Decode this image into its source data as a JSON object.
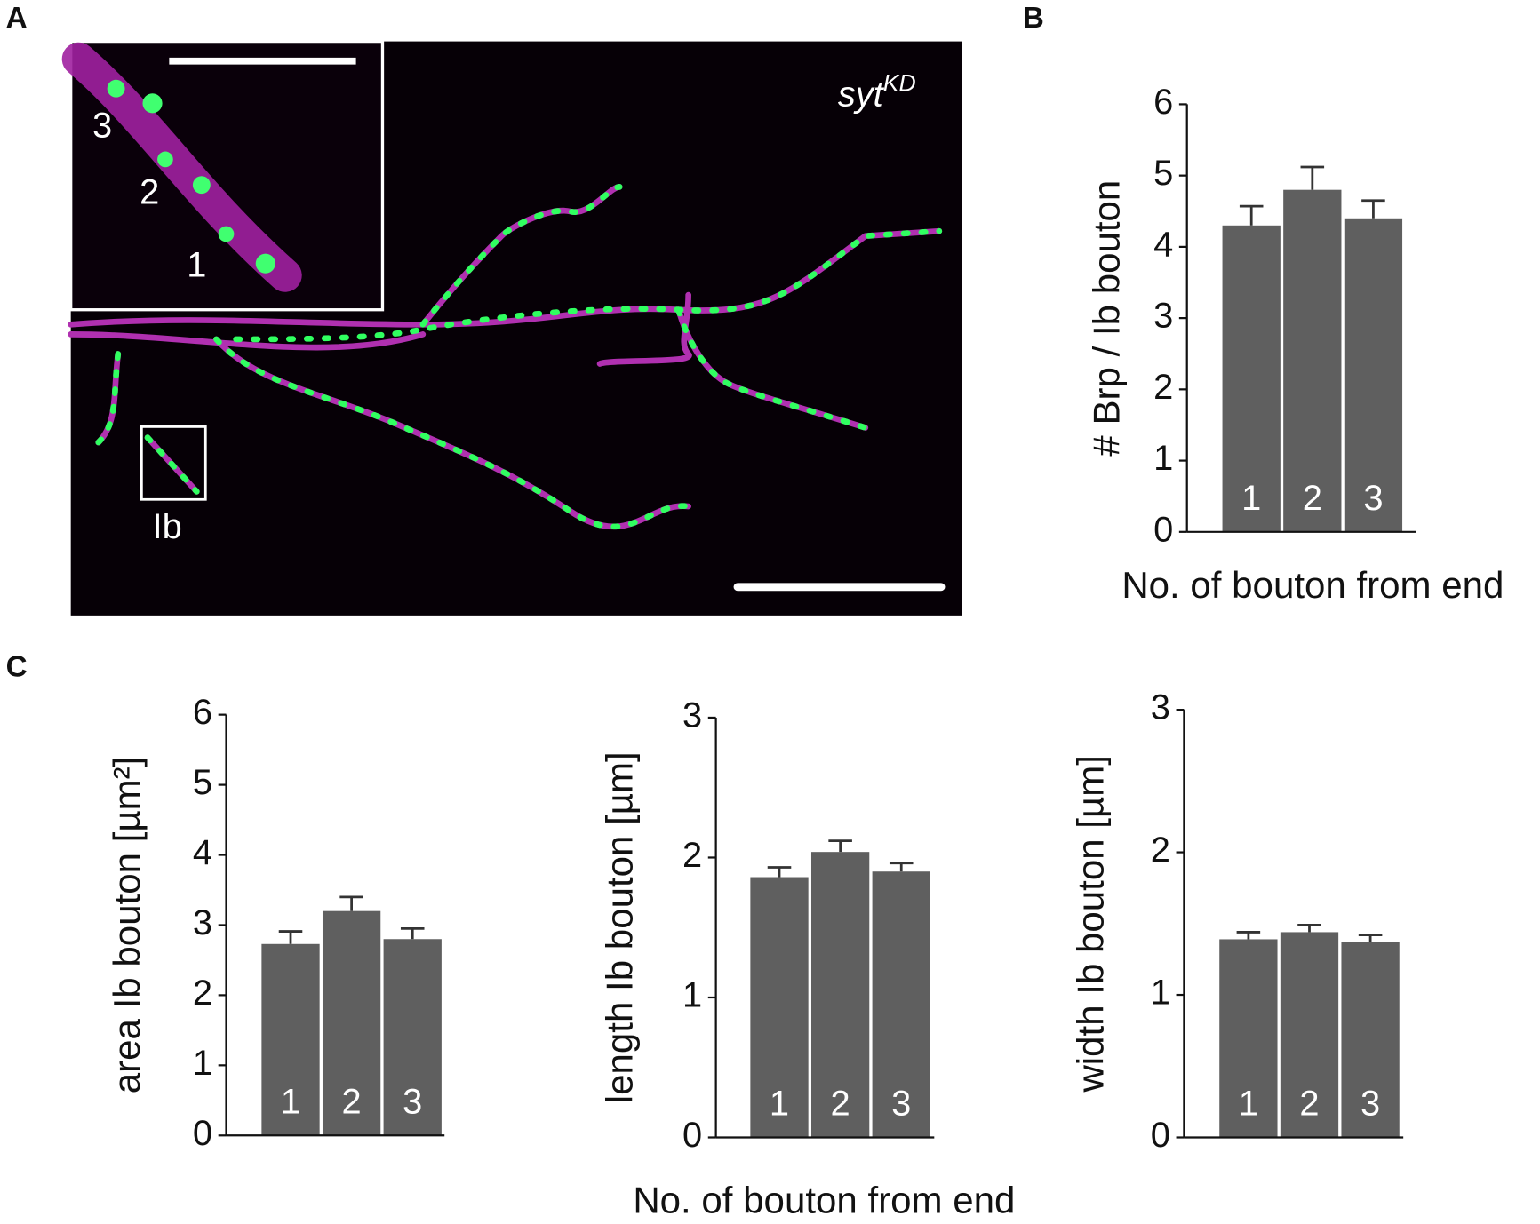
{
  "panels": {
    "a": "A",
    "b": "B",
    "c": "C"
  },
  "image": {
    "label": "syt",
    "label_sup": "KD",
    "inset_labels": [
      "3",
      "2",
      "1"
    ],
    "box_label": "Ib"
  },
  "chart_data": [
    {
      "type": "bar",
      "y_label": "# Brp / Ib bouton",
      "x_label": "No. of bouton from end",
      "categories": [
        "1",
        "2",
        "3"
      ],
      "values": [
        4.3,
        4.8,
        4.4
      ],
      "errors": [
        0.27,
        0.32,
        0.25
      ],
      "color": "#5f5f5f",
      "ylim": [
        0,
        6
      ],
      "yticks": [
        0,
        1,
        2,
        3,
        4,
        5,
        6
      ]
    },
    {
      "type": "bar",
      "y_label": "area Ib bouton [µm²]",
      "x_label": "No. of bouton from end",
      "categories": [
        "1",
        "2",
        "3"
      ],
      "values": [
        2.73,
        3.2,
        2.8
      ],
      "errors": [
        0.18,
        0.2,
        0.15
      ],
      "color": "#5f5f5f",
      "ylim": [
        0,
        6
      ],
      "yticks": [
        0,
        1,
        2,
        3,
        4,
        5,
        6
      ]
    },
    {
      "type": "bar",
      "y_label": "length Ib bouton [µm]",
      "categories": [
        "1",
        "2",
        "3"
      ],
      "values": [
        1.86,
        2.04,
        1.9
      ],
      "errors": [
        0.07,
        0.08,
        0.06
      ],
      "color": "#5f5f5f",
      "ylim": [
        0,
        3
      ],
      "yticks": [
        0,
        1,
        2,
        3
      ]
    },
    {
      "type": "bar",
      "y_label": "width Ib bouton [µm]",
      "categories": [
        "1",
        "2",
        "3"
      ],
      "values": [
        1.39,
        1.44,
        1.37
      ],
      "errors": [
        0.05,
        0.05,
        0.05
      ],
      "color": "#5f5f5f",
      "ylim": [
        0,
        3
      ],
      "yticks": [
        0,
        1,
        2,
        3
      ]
    }
  ]
}
